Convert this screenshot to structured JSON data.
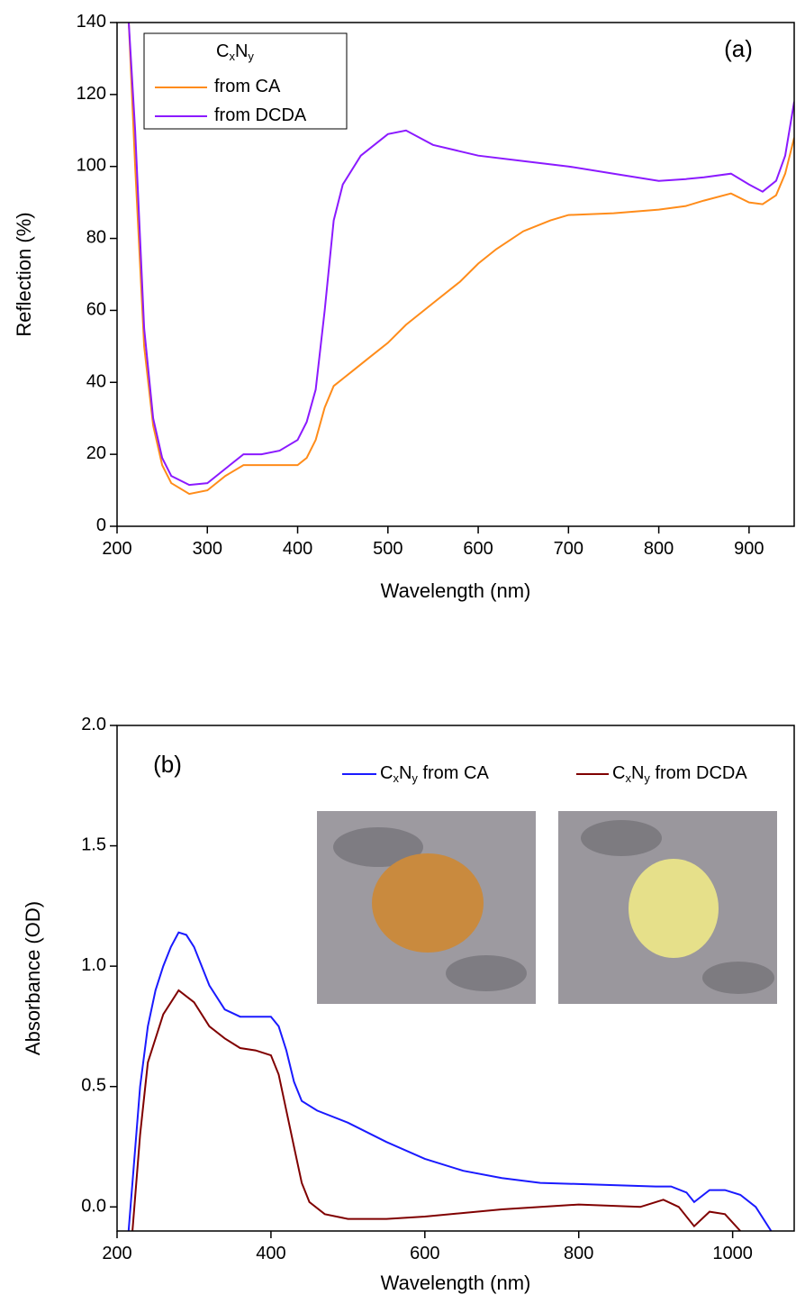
{
  "chart_data": [
    {
      "type": "line",
      "annotation": "(a)",
      "x_label": "Wavelength (nm)",
      "y_label": "Reflection (%)",
      "xlim": [
        200,
        950
      ],
      "xticks": [
        200,
        300,
        400,
        500,
        600,
        700,
        800,
        900
      ],
      "ylim": [
        0,
        140
      ],
      "yticks": [
        0,
        20,
        40,
        60,
        80,
        100,
        120,
        140
      ],
      "legend_title": "CxNy",
      "legend": "upper left",
      "series": [
        {
          "name": "from CA",
          "color": "#ff8c1a",
          "x": [
            213,
            220,
            230,
            240,
            250,
            260,
            280,
            300,
            320,
            340,
            360,
            380,
            400,
            410,
            420,
            430,
            440,
            460,
            480,
            500,
            520,
            550,
            580,
            600,
            620,
            650,
            680,
            700,
            750,
            800,
            830,
            850,
            880,
            900,
            915,
            930,
            940,
            950
          ],
          "values": [
            140,
            100,
            50,
            28,
            17,
            12,
            9,
            10,
            14,
            17,
            17,
            17,
            17,
            19,
            24,
            33,
            39,
            43,
            47,
            51,
            56,
            62,
            68,
            73,
            77,
            82,
            85,
            86.5,
            87,
            88,
            89,
            90.5,
            92.5,
            90,
            89.5,
            92,
            98,
            108
          ]
        },
        {
          "name": "from DCDA",
          "color": "#8b1aff",
          "x": [
            213,
            220,
            230,
            240,
            250,
            260,
            280,
            300,
            320,
            340,
            360,
            380,
            400,
            410,
            420,
            430,
            440,
            450,
            470,
            500,
            520,
            550,
            600,
            650,
            700,
            750,
            800,
            830,
            850,
            880,
            900,
            915,
            930,
            940,
            950
          ],
          "values": [
            140,
            110,
            55,
            30,
            19,
            14,
            11.5,
            12,
            16,
            20,
            20,
            21,
            24,
            29,
            38,
            60,
            85,
            95,
            103,
            109,
            110,
            106,
            103,
            101.5,
            100,
            98,
            96,
            96.5,
            97,
            98,
            95,
            93,
            96,
            103,
            118
          ]
        }
      ]
    },
    {
      "type": "line",
      "annotation": "(b)",
      "x_label": "Wavelength (nm)",
      "y_label": "Absorbance (OD)",
      "xlim": [
        200,
        1080
      ],
      "xticks": [
        200,
        400,
        600,
        800,
        1000
      ],
      "ylim": [
        -0.1,
        2.0
      ],
      "yticks": [
        {
          "value": 0,
          "label": "0.0"
        },
        0.5,
        {
          "value": 1,
          "label": "1.0"
        },
        1.5,
        {
          "value": 2,
          "label": "2.0"
        }
      ],
      "legend": "upper right",
      "series": [
        {
          "name": "CxNy from CA",
          "color": "#1a1aff",
          "x": [
            215,
            220,
            230,
            240,
            250,
            260,
            270,
            280,
            290,
            300,
            320,
            340,
            360,
            380,
            400,
            410,
            420,
            430,
            440,
            460,
            500,
            550,
            600,
            650,
            700,
            750,
            800,
            850,
            900,
            920,
            940,
            950,
            970,
            990,
            1010,
            1030,
            1050
          ],
          "values": [
            -0.1,
            0.1,
            0.5,
            0.75,
            0.9,
            1.0,
            1.08,
            1.14,
            1.13,
            1.08,
            0.92,
            0.82,
            0.79,
            0.79,
            0.79,
            0.75,
            0.65,
            0.52,
            0.44,
            0.4,
            0.35,
            0.27,
            0.2,
            0.15,
            0.12,
            0.1,
            0.095,
            0.09,
            0.085,
            0.085,
            0.06,
            0.02,
            0.07,
            0.07,
            0.05,
            0.0,
            -0.1
          ]
        },
        {
          "name": "CxNy from DCDA",
          "color": "#800000",
          "x": [
            220,
            230,
            240,
            260,
            280,
            300,
            320,
            340,
            360,
            380,
            400,
            410,
            420,
            430,
            440,
            450,
            470,
            500,
            550,
            600,
            700,
            800,
            880,
            910,
            930,
            950,
            970,
            990,
            1010
          ],
          "values": [
            -0.1,
            0.3,
            0.6,
            0.8,
            0.9,
            0.85,
            0.75,
            0.7,
            0.66,
            0.65,
            0.63,
            0.55,
            0.4,
            0.25,
            0.1,
            0.02,
            -0.03,
            -0.05,
            -0.05,
            -0.04,
            -0.01,
            0.01,
            0.0,
            0.03,
            0.0,
            -0.08,
            -0.02,
            -0.03,
            -0.1
          ]
        }
      ]
    }
  ]
}
